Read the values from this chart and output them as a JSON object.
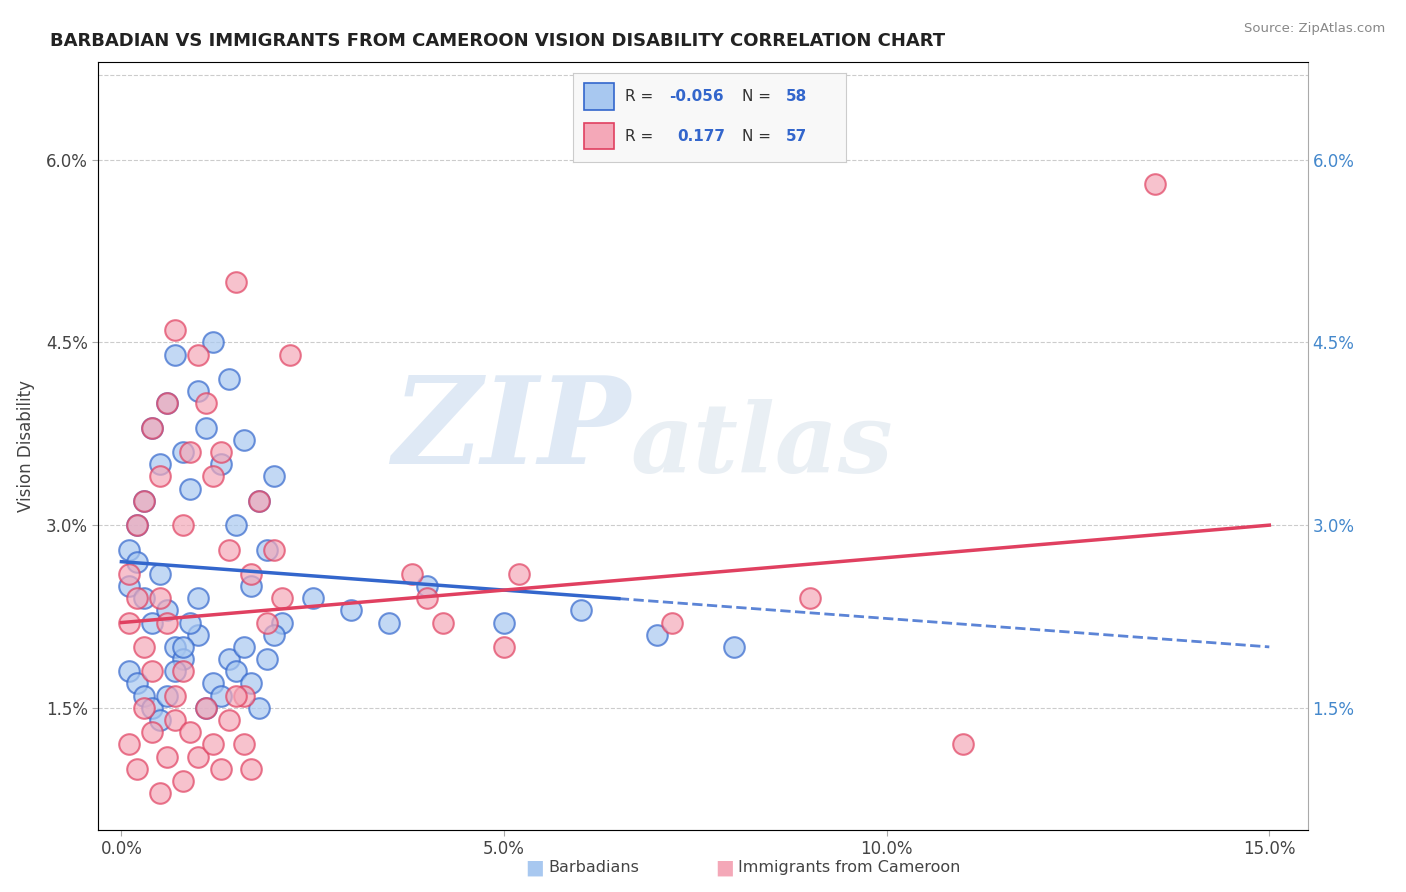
{
  "title": "BARBADIAN VS IMMIGRANTS FROM CAMEROON VISION DISABILITY CORRELATION CHART",
  "source": "Source: ZipAtlas.com",
  "xlabel_barbadians": "Barbadians",
  "xlabel_cameroon": "Immigrants from Cameroon",
  "ylabel": "Vision Disability",
  "xmin": 0.0,
  "xmax": 0.15,
  "ymin": 0.005,
  "ymax": 0.065,
  "yticks": [
    0.015,
    0.03,
    0.045,
    0.06
  ],
  "ytick_labels": [
    "1.5%",
    "3.0%",
    "4.5%",
    "6.0%"
  ],
  "xticks": [
    0.0,
    0.05,
    0.1,
    0.15
  ],
  "xtick_labels": [
    "0.0%",
    "5.0%",
    "10.0%",
    "15.0%"
  ],
  "r_barbadian": -0.056,
  "n_barbadian": 58,
  "r_cameroon": 0.177,
  "n_cameroon": 57,
  "color_barbadian": "#a8c8f0",
  "color_cameroon": "#f4a8b8",
  "line_color_barbadian": "#3366cc",
  "line_color_cameroon": "#e04060",
  "watermark_zip": "ZIP",
  "watermark_atlas": "atlas",
  "right_tick_color": "#4488cc"
}
